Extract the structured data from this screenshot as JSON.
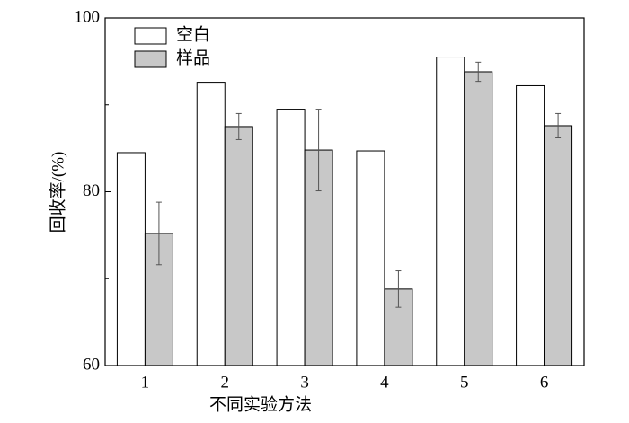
{
  "chart_data": {
    "type": "bar",
    "x_label": "不同实验方法",
    "y_label": "回收率/(%)",
    "categories": [
      "1",
      "2",
      "3",
      "4",
      "5",
      "6"
    ],
    "series": [
      {
        "name": "空白",
        "color": "#ffffff",
        "values": [
          84.5,
          92.6,
          89.5,
          84.7,
          95.5,
          92.2
        ]
      },
      {
        "name": "样品",
        "color": "#c8c8c8",
        "values": [
          75.2,
          87.5,
          84.8,
          68.8,
          93.8,
          87.6
        ],
        "errors": [
          3.6,
          1.5,
          4.7,
          2.1,
          1.1,
          1.4
        ]
      }
    ],
    "ylim": [
      60,
      100
    ],
    "yticks": [
      60,
      80,
      100
    ],
    "yminorticks": [
      70,
      90
    ],
    "legend": "upper-left"
  }
}
